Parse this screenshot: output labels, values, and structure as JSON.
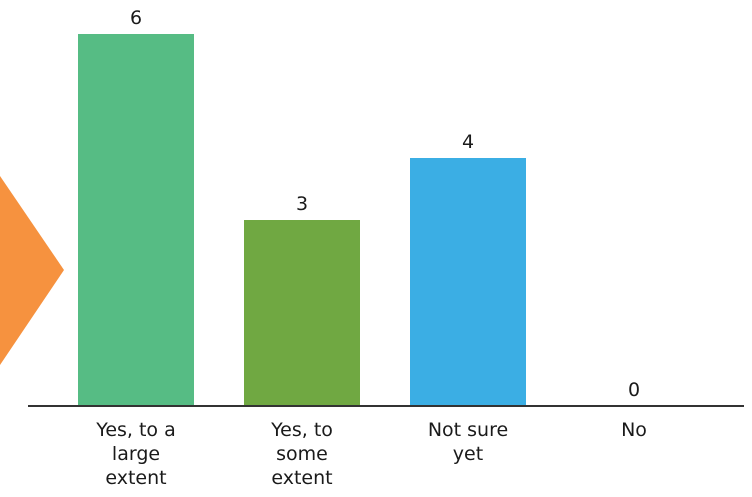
{
  "chart_data": {
    "type": "bar",
    "categories": [
      "Yes, to a large extent",
      "Yes, to some extent",
      "Not sure yet",
      "No"
    ],
    "category_label_lines": [
      [
        "Yes, to a",
        "large",
        "extent"
      ],
      [
        "Yes, to",
        "some",
        "extent"
      ],
      [
        "Not sure",
        "yet"
      ],
      [
        "No"
      ]
    ],
    "values": [
      6,
      3,
      4,
      0
    ],
    "data_labels": [
      "6",
      "3",
      "4",
      "0"
    ],
    "bar_colors": [
      "#56bc84",
      "#70a842",
      "#3baee4",
      "#56bc84"
    ],
    "ylim": [
      0,
      6
    ],
    "grid": false,
    "title": "",
    "xlabel": "",
    "ylabel": ""
  },
  "decoration": {
    "arrow_color": "#f6923f",
    "axis_color": "#333333"
  }
}
